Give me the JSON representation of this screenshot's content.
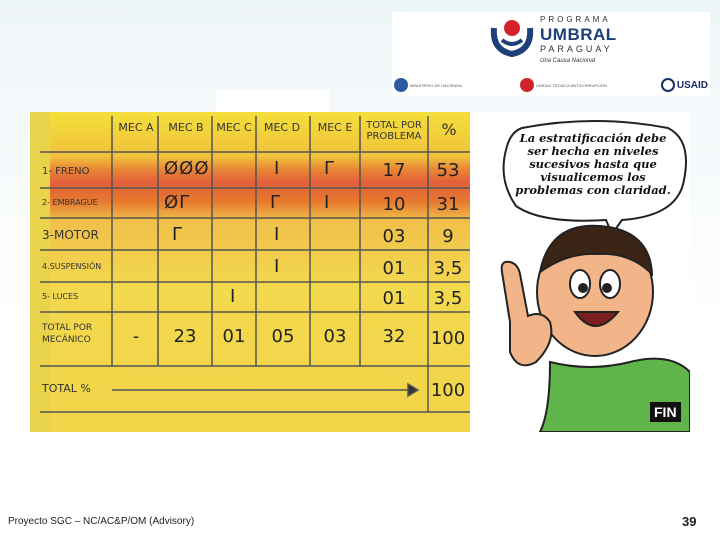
{
  "logo": {
    "program": "PROGRAMA",
    "name": "UMBRAL",
    "country": "PARAGUAY",
    "slogan": "Una Causa Nacional",
    "partners": [
      "MINISTERIO DE HACIENDA",
      "UNIDAD TECNICA ANTICORRUPCION",
      "USAID"
    ]
  },
  "table": {
    "headers": [
      "MEC A",
      "MEC B",
      "MEC C",
      "MEC D",
      "MEC E",
      "TOTAL POR PROBLEMA",
      "%"
    ],
    "rows": [
      {
        "label": "1- FRENO",
        "cells": [
          "",
          "ØØØ",
          "",
          "I",
          "Γ",
          "17",
          "53"
        ]
      },
      {
        "label": "2- EMBRAGUE",
        "cells": [
          "",
          "ØΓ",
          "",
          "Γ",
          "I",
          "10",
          "31"
        ]
      },
      {
        "label": "3-MOTOR",
        "cells": [
          "",
          "Γ",
          "",
          "I",
          "",
          "03",
          "9"
        ]
      },
      {
        "label": "4.SUSPENSIÓN",
        "cells": [
          "",
          "",
          "",
          "I",
          "",
          "01",
          "3,5"
        ]
      },
      {
        "label": "5- LUCES",
        "cells": [
          "",
          "",
          "I",
          "",
          "",
          "01",
          "3,5"
        ]
      },
      {
        "label": "TOTAL POR MECÁNICO",
        "cells": [
          "-",
          "23",
          "01",
          "05",
          "03",
          "32",
          "100"
        ]
      },
      {
        "label": "TOTAL %",
        "cells": [
          "",
          "",
          "",
          "",
          "",
          "",
          "100"
        ]
      }
    ]
  },
  "speech_bubble": "La estratificación debe ser hecha en niveles sucesivos hasta que visualicemos los problemas con claridad.",
  "fin_label": "FIN",
  "footer": {
    "text": "Proyecto SGC – NC/AC&P/OM (Advisory)",
    "page": "39"
  },
  "colors": {
    "table_yellow": "#f3d94e",
    "table_red": "#e2603a",
    "shirt_green": "#5fb44a",
    "umbral_blue": "#1f3f7a",
    "umbral_red": "#d2232a"
  }
}
